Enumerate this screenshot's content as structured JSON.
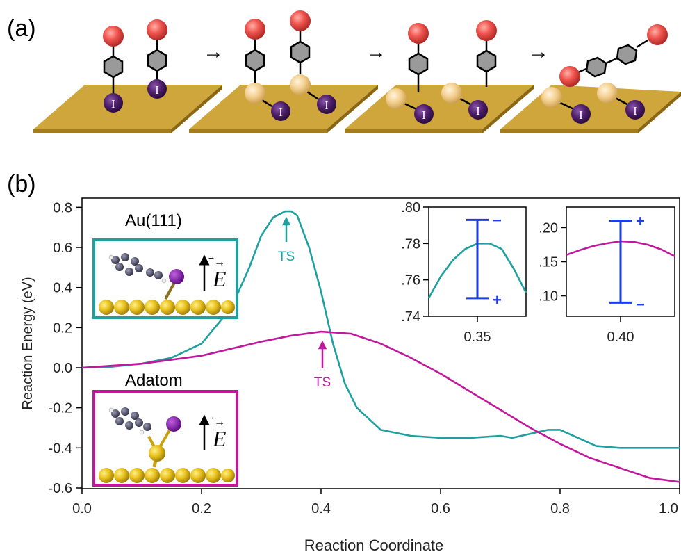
{
  "panel_a": {
    "label": "(a)",
    "iodine_label": "I",
    "arrow": "→",
    "colors": {
      "surface": "#cfa63c",
      "surface_edge": "#a27c1e",
      "halogen": "#f05550",
      "iodine": "#4e1f6b",
      "ring": "#9a9a9a",
      "adatom": "#f3cf8f"
    }
  },
  "panel_b": {
    "label": "(b)",
    "legend": {
      "au111": {
        "label": "Au(111)",
        "color": "#1ea0a0"
      },
      "adatom": {
        "label": "Adatom",
        "color": "#c0189c"
      },
      "field_symbol": "E"
    },
    "ts_label": "TS"
  },
  "chart_data": [
    {
      "type": "line",
      "xlabel": "Reaction Coordinate",
      "ylabel": "Reaction Energy (eV)",
      "xlim": [
        0.0,
        1.0
      ],
      "ylim": [
        -0.6,
        0.85
      ],
      "xticks": [
        "0.0",
        "0.2",
        "0.4",
        "0.6",
        "0.8",
        "1.0"
      ],
      "yticks": [
        "-0.6",
        "-0.4",
        "-0.2",
        "0.0",
        "0.2",
        "0.4",
        "0.6",
        "0.8"
      ],
      "series": [
        {
          "name": "Au(111)",
          "color": "#1ea0a0",
          "x": [
            0.0,
            0.05,
            0.1,
            0.15,
            0.2,
            0.25,
            0.28,
            0.3,
            0.32,
            0.34,
            0.35,
            0.36,
            0.38,
            0.4,
            0.42,
            0.44,
            0.46,
            0.5,
            0.55,
            0.6,
            0.65,
            0.7,
            0.72,
            0.75,
            0.78,
            0.8,
            0.83,
            0.86,
            0.9,
            0.95,
            1.0
          ],
          "y": [
            0.0,
            0.005,
            0.02,
            0.05,
            0.12,
            0.3,
            0.5,
            0.66,
            0.75,
            0.78,
            0.78,
            0.76,
            0.6,
            0.38,
            0.12,
            -0.08,
            -0.2,
            -0.31,
            -0.34,
            -0.35,
            -0.35,
            -0.34,
            -0.35,
            -0.33,
            -0.31,
            -0.31,
            -0.35,
            -0.39,
            -0.4,
            -0.4,
            -0.4
          ]
        },
        {
          "name": "Adatom",
          "color": "#c0189c",
          "x": [
            0.0,
            0.1,
            0.2,
            0.3,
            0.35,
            0.4,
            0.45,
            0.5,
            0.55,
            0.6,
            0.65,
            0.7,
            0.75,
            0.8,
            0.85,
            0.9,
            0.95,
            1.0
          ],
          "y": [
            0.0,
            0.02,
            0.06,
            0.13,
            0.16,
            0.18,
            0.17,
            0.12,
            0.05,
            -0.03,
            -0.12,
            -0.21,
            -0.3,
            -0.38,
            -0.45,
            -0.5,
            -0.55,
            -0.57
          ]
        }
      ],
      "annotations": [
        {
          "text": "TS",
          "x": 0.35,
          "y": 0.78,
          "series": "Au(111)"
        },
        {
          "text": "TS",
          "x": 0.41,
          "y": 0.18,
          "series": "Adatom"
        }
      ]
    },
    {
      "type": "line",
      "inset": true,
      "xticks": [
        "0.35"
      ],
      "yticks": [
        ".80",
        ".78",
        ".76",
        ".74"
      ],
      "ylim": [
        0.74,
        0.8
      ],
      "xlim": [
        0.33,
        0.37
      ],
      "series": [
        {
          "name": "Au(111)",
          "color": "#1ea0a0",
          "x": [
            0.33,
            0.335,
            0.34,
            0.345,
            0.35,
            0.355,
            0.36,
            0.365,
            0.37
          ],
          "y": [
            0.75,
            0.762,
            0.771,
            0.777,
            0.78,
            0.78,
            0.777,
            0.766,
            0.753
          ]
        }
      ],
      "error_bar": {
        "x": 0.35,
        "upper": 0.793,
        "lower": 0.75,
        "upper_sign": "−",
        "lower_sign": "+",
        "color": "#1a3de8"
      }
    },
    {
      "type": "line",
      "inset": true,
      "xticks": [
        "0.40"
      ],
      "yticks": [
        ".20",
        ".15",
        ".10"
      ],
      "ylim": [
        0.07,
        0.23
      ],
      "xlim": [
        0.36,
        0.44
      ],
      "series": [
        {
          "name": "Adatom",
          "color": "#c0189c",
          "x": [
            0.36,
            0.37,
            0.38,
            0.39,
            0.4,
            0.41,
            0.42,
            0.43,
            0.44
          ],
          "y": [
            0.16,
            0.167,
            0.173,
            0.177,
            0.18,
            0.179,
            0.175,
            0.168,
            0.158
          ]
        }
      ],
      "error_bar": {
        "x": 0.4,
        "upper": 0.21,
        "lower": 0.09,
        "upper_sign": "+",
        "lower_sign": "−",
        "color": "#1a3de8"
      }
    }
  ]
}
